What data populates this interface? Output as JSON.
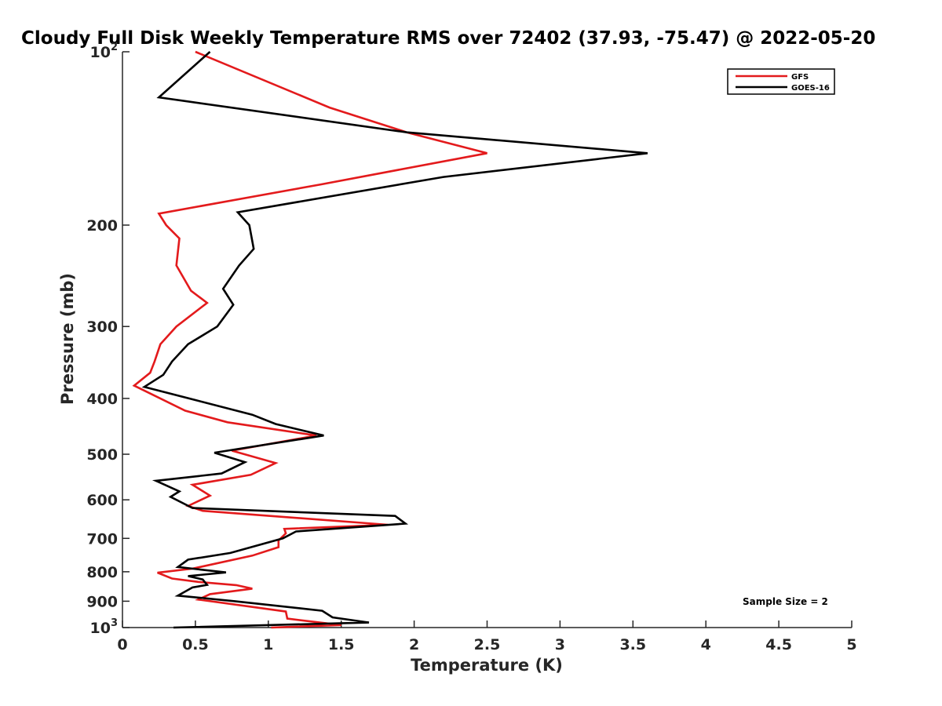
{
  "chart_data": {
    "type": "line",
    "title": "Cloudy Full Disk Weekly Temperature RMS over 72402 (37.93, -75.47) @ 2022-05-20",
    "xlabel": "Temperature (K)",
    "ylabel": "Pressure (mb)",
    "xlim": [
      0,
      5
    ],
    "ylim": [
      100,
      1000
    ],
    "y_scale": "log",
    "y_reversed": true,
    "grid": false,
    "legend_position": "top-right",
    "x_ticks": [
      "0",
      "0.5",
      "1",
      "1.5",
      "2",
      "2.5",
      "3",
      "3.5",
      "4",
      "4.5",
      "5"
    ],
    "y_ticks": [
      {
        "value": 100,
        "label": "10",
        "sup": "2"
      },
      {
        "value": 200,
        "label": "200",
        "sup": ""
      },
      {
        "value": 300,
        "label": "300",
        "sup": ""
      },
      {
        "value": 400,
        "label": "400",
        "sup": ""
      },
      {
        "value": 500,
        "label": "500",
        "sup": ""
      },
      {
        "value": 600,
        "label": "600",
        "sup": ""
      },
      {
        "value": 700,
        "label": "700",
        "sup": ""
      },
      {
        "value": 800,
        "label": "800",
        "sup": ""
      },
      {
        "value": 900,
        "label": "900",
        "sup": ""
      },
      {
        "value": 1000,
        "label": "10",
        "sup": "3"
      }
    ],
    "series": [
      {
        "name": "GFS",
        "color": "#e31a1c",
        "points": [
          [
            0.5,
            100
          ],
          [
            1.42,
            125
          ],
          [
            1.95,
            138
          ],
          [
            2.5,
            150
          ],
          [
            1.36,
            170
          ],
          [
            0.25,
            191
          ],
          [
            0.3,
            200
          ],
          [
            0.39,
            211
          ],
          [
            0.37,
            235
          ],
          [
            0.47,
            260
          ],
          [
            0.58,
            273
          ],
          [
            0.37,
            300
          ],
          [
            0.26,
            322
          ],
          [
            0.22,
            345
          ],
          [
            0.19,
            361
          ],
          [
            0.08,
            380
          ],
          [
            0.43,
            420
          ],
          [
            0.72,
            440
          ],
          [
            1.33,
            464
          ],
          [
            0.75,
            493
          ],
          [
            1.05,
            518
          ],
          [
            0.88,
            543
          ],
          [
            0.48,
            565
          ],
          [
            0.6,
            590
          ],
          [
            0.45,
            615
          ],
          [
            0.55,
            627
          ],
          [
            1.82,
            663
          ],
          [
            1.11,
            674
          ],
          [
            1.12,
            686
          ],
          [
            1.07,
            706
          ],
          [
            1.07,
            725
          ],
          [
            0.89,
            750
          ],
          [
            0.48,
            790
          ],
          [
            0.24,
            803
          ],
          [
            0.34,
            822
          ],
          [
            0.52,
            833
          ],
          [
            0.78,
            844
          ],
          [
            0.89,
            856
          ],
          [
            0.6,
            875
          ],
          [
            0.52,
            894
          ],
          [
            1.12,
            938
          ],
          [
            1.13,
            965
          ],
          [
            1.5,
            990
          ],
          [
            1.02,
            1000
          ]
        ]
      },
      {
        "name": "GOES-16",
        "color": "#000000",
        "points": [
          [
            0.6,
            100
          ],
          [
            0.25,
            120
          ],
          [
            1.95,
            138
          ],
          [
            3.6,
            150
          ],
          [
            2.2,
            165
          ],
          [
            0.79,
            190
          ],
          [
            0.87,
            200
          ],
          [
            0.9,
            220
          ],
          [
            0.8,
            235
          ],
          [
            0.69,
            258
          ],
          [
            0.76,
            275
          ],
          [
            0.65,
            300
          ],
          [
            0.45,
            322
          ],
          [
            0.34,
            345
          ],
          [
            0.28,
            364
          ],
          [
            0.15,
            382
          ],
          [
            0.89,
            427
          ],
          [
            1.05,
            443
          ],
          [
            1.38,
            464
          ],
          [
            0.63,
            497
          ],
          [
            0.84,
            516
          ],
          [
            0.68,
            540
          ],
          [
            0.23,
            556
          ],
          [
            0.39,
            580
          ],
          [
            0.33,
            593
          ],
          [
            0.48,
            620
          ],
          [
            1.87,
            640
          ],
          [
            1.94,
            660
          ],
          [
            1.19,
            681
          ],
          [
            1.1,
            700
          ],
          [
            0.74,
            742
          ],
          [
            0.45,
            762
          ],
          [
            0.38,
            785
          ],
          [
            0.71,
            802
          ],
          [
            0.45,
            814
          ],
          [
            0.55,
            825
          ],
          [
            0.58,
            843
          ],
          [
            0.48,
            852
          ],
          [
            0.38,
            880
          ],
          [
            0.77,
            900
          ],
          [
            1.37,
            935
          ],
          [
            1.44,
            960
          ],
          [
            1.69,
            980
          ],
          [
            0.35,
            1000
          ]
        ]
      }
    ],
    "annotation": "Sample Size = 2"
  }
}
